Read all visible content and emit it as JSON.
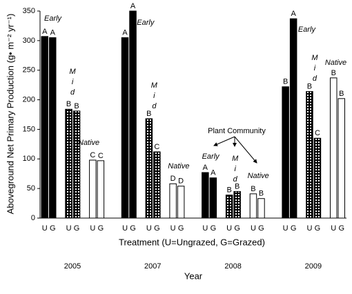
{
  "chart_data": {
    "type": "bar",
    "ylabel": "Aboveground Net Primary Production (g• m⁻² yr⁻¹)",
    "xlabel": "Treatment (U=Ungrazed, G=Grazed)",
    "year_label": "Year",
    "legend_title": "Plant Community",
    "years": [
      "2005",
      "2007",
      "2008",
      "2009"
    ],
    "treatments": [
      "U",
      "G"
    ],
    "ylim": [
      0,
      350
    ],
    "yticks": [
      0,
      50,
      100,
      150,
      200,
      250,
      300,
      350
    ],
    "series": [
      {
        "name": "Early",
        "color": "#000000",
        "values": [
          [
            307,
            305
          ],
          [
            305,
            350
          ],
          [
            77,
            68
          ],
          [
            222,
            337
          ]
        ],
        "letters": [
          [
            "A",
            "A"
          ],
          [
            "A",
            "A"
          ],
          [
            "A",
            "A"
          ],
          [
            "B",
            "A"
          ]
        ]
      },
      {
        "name": "Mid",
        "color": "#000000",
        "pattern": "crosshatch",
        "values": [
          [
            184,
            181
          ],
          [
            168,
            112
          ],
          [
            39,
            45
          ],
          [
            214,
            135
          ]
        ],
        "letters": [
          [
            "B",
            "B"
          ],
          [
            "B",
            "C"
          ],
          [
            "B",
            "B"
          ],
          [
            "B",
            "C"
          ]
        ]
      },
      {
        "name": "Native",
        "color": "#ffffff",
        "values": [
          [
            98,
            97
          ],
          [
            58,
            54
          ],
          [
            41,
            33
          ],
          [
            237,
            202
          ]
        ],
        "letters": [
          [
            "C",
            "C"
          ],
          [
            "D",
            "D"
          ],
          [
            "B",
            "B"
          ],
          [
            "B",
            "B"
          ]
        ]
      }
    ]
  }
}
